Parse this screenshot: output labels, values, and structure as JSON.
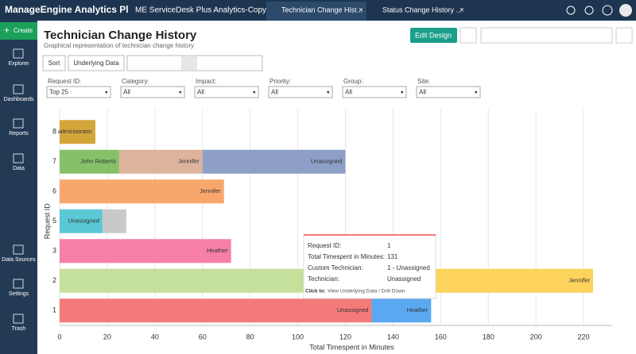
{
  "header": {
    "logo": "ManageEngine Analytics Plus",
    "tabs": [
      "ME ServiceDesk Plus Analytics-Copy",
      "Technician Change Hist...",
      "Status Change History ..."
    ]
  },
  "sidebar": {
    "create": "Create",
    "items": [
      "Explorer",
      "Dashboards",
      "Reports",
      "Data",
      "Data Sources",
      "Settings",
      "Trash"
    ]
  },
  "report": {
    "title": "Technician Change History",
    "subtitle": "Graphical representation of technician change history",
    "edit_button": "Edit Design",
    "toolbar": [
      "Sort",
      "Underlying Data"
    ]
  },
  "filters": [
    {
      "label": "Request ID:",
      "value": "Top 25"
    },
    {
      "label": "Category:",
      "value": "All"
    },
    {
      "label": "Impact:",
      "value": "All"
    },
    {
      "label": "Priority:",
      "value": "All"
    },
    {
      "label": "Group:",
      "value": "All"
    },
    {
      "label": "Site:",
      "value": "All"
    }
  ],
  "chart_data": {
    "type": "stacked-barh",
    "x_label": "Total Timespent in Minutes",
    "y_label": "Request ID",
    "categories": [
      "1",
      "2",
      "3",
      "5",
      "6",
      "7",
      "8"
    ],
    "series": [
      {
        "values": [
          131,
          150,
          72,
          18,
          69,
          25,
          15
        ],
        "labels": [
          "Unassigned",
          null,
          "Heather",
          "Unassigned",
          "Jennifer",
          "John Roberts",
          "administrator"
        ],
        "colors": [
          "#f47a7a",
          "#c5e09a",
          "#f77fa8",
          "#5bc8d6",
          "#f9a66c",
          "#86c16a",
          "#d4a63a"
        ]
      },
      {
        "values": [
          25,
          74,
          null,
          10,
          null,
          35,
          null
        ],
        "labels": [
          "Heather",
          "Jennifer",
          null,
          null,
          null,
          "Jennifer",
          null
        ],
        "colors": [
          "#5aa9f0",
          "#fdd35c",
          null,
          "#c9c9c9",
          null,
          "#ddb39c",
          null
        ]
      },
      {
        "values": [
          null,
          null,
          null,
          null,
          null,
          60,
          null
        ],
        "labels": [
          null,
          null,
          null,
          null,
          null,
          "Unassigned",
          null
        ],
        "colors": [
          null,
          null,
          null,
          null,
          null,
          "#8e9fc7",
          null
        ]
      }
    ],
    "xlim": [
      0,
      232
    ],
    "xticks": [
      0,
      20,
      40,
      60,
      80,
      100,
      120,
      140,
      160,
      180,
      200,
      220
    ],
    "grid": true
  },
  "tooltip": {
    "rows": [
      [
        "Request ID:",
        "1"
      ],
      [
        "Total Timespent in Minutes:",
        "131"
      ],
      [
        "Custom Technician:",
        "1 - Unassigned"
      ],
      [
        "Technician:",
        "Unassigned"
      ]
    ],
    "footer_label": "Click to:",
    "footer": "View Underlying Data / Drill Down"
  }
}
